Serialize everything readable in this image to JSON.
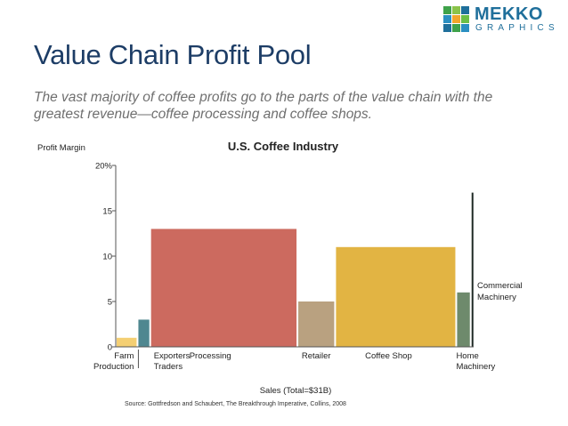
{
  "logo": {
    "word1": "MEKKO",
    "word2": "GRAPHICS"
  },
  "slide": {
    "title": "Value Chain Profit Pool",
    "subtitle": "The vast majority of coffee profits go to the parts of the value chain with the greatest revenue—coffee processing and coffee shops."
  },
  "chart_data": {
    "type": "marimekko",
    "title": "U.S. Coffee Industry",
    "ylabel": "Profit Margin",
    "xlabel": "Sales (Total=$31B)",
    "ylim": [
      0,
      20
    ],
    "y_ticks": [
      "0",
      "5",
      "10",
      "15",
      "20%"
    ],
    "y_tick_values": [
      0,
      5,
      10,
      15,
      20
    ],
    "total_sales": 31,
    "segments": [
      {
        "name": "Farm Production",
        "label_lines": [
          "Farm",
          "Production"
        ],
        "margin": 1,
        "share": 6.0,
        "color": "#f4cf73"
      },
      {
        "name": "Exporters Traders",
        "label_lines": [
          "Exporters",
          "Traders"
        ],
        "margin": 3,
        "share": 3.5,
        "color": "#4f8790"
      },
      {
        "name": "Processing",
        "label_lines": [
          "Processing"
        ],
        "margin": 13,
        "share": 40.6,
        "color": "#cc6a5f"
      },
      {
        "name": "Retailer",
        "label_lines": [
          "Retailer"
        ],
        "margin": 5,
        "share": 10.4,
        "color": "#b9a180"
      },
      {
        "name": "Coffee Shop",
        "label_lines": [
          "Coffee Shop"
        ],
        "margin": 11,
        "share": 33.4,
        "color": "#e2b443"
      },
      {
        "name": "Home Machinery",
        "label_lines": [
          "Home",
          "Machinery"
        ],
        "margin": 6,
        "share": 4.0,
        "color": "#6e8a6c"
      },
      {
        "name": "Commercial Machinery",
        "label_lines": [
          "Commercial",
          "Machinery"
        ],
        "margin": 17,
        "share": 0.8,
        "color": "#1f2a25"
      }
    ]
  },
  "source": "Source: Gottfredson and Schaubert, The Breakthrough Imperative, Collins, 2008"
}
